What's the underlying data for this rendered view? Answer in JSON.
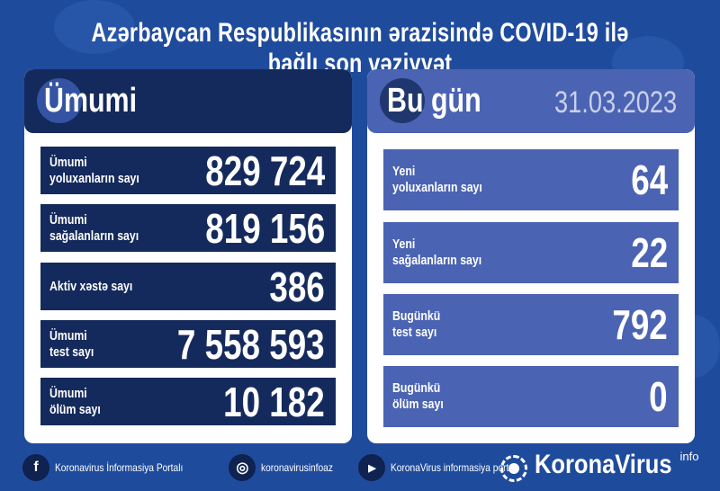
{
  "title": "Azərbaycan Respublikasının ərazisində COVID-19 ilə bağlı son vəziyyət",
  "total": {
    "heading": "Ümumi",
    "rows": [
      {
        "label1": "Ümumi",
        "label2": "yoluxanların sayı",
        "value": "829 724"
      },
      {
        "label1": "Ümumi",
        "label2": "sağalanların sayı",
        "value": "819 156"
      },
      {
        "label1": "Aktiv xəstə sayı",
        "label2": "",
        "value": "386"
      },
      {
        "label1": "Ümumi",
        "label2": "test sayı",
        "value": "7 558 593"
      },
      {
        "label1": "Ümumi",
        "label2": "ölüm sayı",
        "value": "10 182"
      }
    ]
  },
  "today": {
    "heading": "Bu gün",
    "date": "31.03.2023",
    "rows": [
      {
        "label1": "Yeni",
        "label2": "yoluxanların sayı",
        "value": "64"
      },
      {
        "label1": "Yeni",
        "label2": "sağalanların sayı",
        "value": "22"
      },
      {
        "label1": "Bugünkü",
        "label2": "test sayı",
        "value": "792"
      },
      {
        "label1": "Bugünkü",
        "label2": "ölüm sayı",
        "value": "0"
      }
    ]
  },
  "footer": {
    "links": [
      {
        "icon": "facebook-icon",
        "glyph": "f",
        "text": "Koronavirus İnformasiya Portalı"
      },
      {
        "icon": "instagram-icon",
        "glyph": "◎",
        "text": "koronavirusinfoaz"
      },
      {
        "icon": "youtube-icon",
        "glyph": "▶",
        "text": "KoronaVirus informasiya portalı"
      }
    ],
    "brand": "KoronaVirus",
    "brand_sup": "info"
  },
  "colors": {
    "background": "#1f4b9c",
    "navy": "#152a5c",
    "today_blue": "#4b63b3",
    "date": "#c9d0ea"
  }
}
